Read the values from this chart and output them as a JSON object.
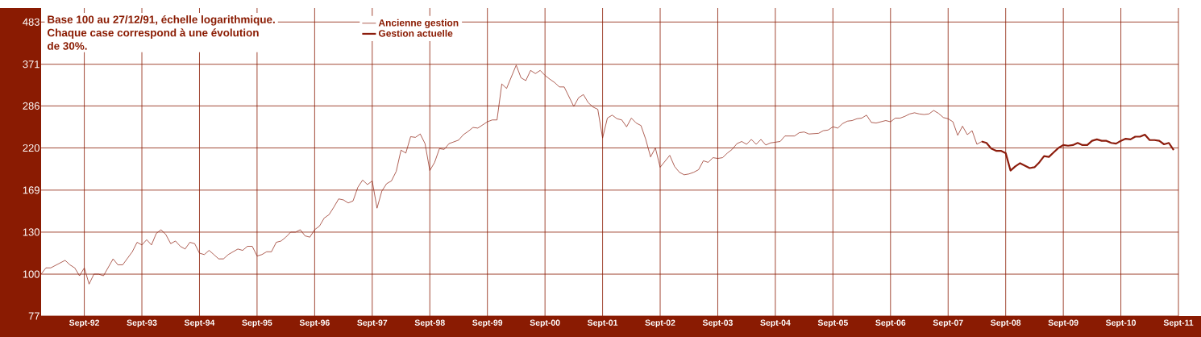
{
  "chart_data": {
    "type": "line",
    "annotations": [
      "Base 100 au 27/12/91, échelle logarithmique.",
      "Chaque case correspond à une évolution",
      "de 30%."
    ],
    "series": [
      {
        "name": "Ancienne gestion",
        "color": "#8c1c0c",
        "x": [
          "1991-12",
          "1992-01",
          "1992-02",
          "1992-05",
          "1992-06",
          "1992-07",
          "1992-08",
          "1992-09",
          "1992-10",
          "1992-11",
          "1992-12",
          "1993-01",
          "1993-03",
          "1993-04",
          "1993-05",
          "1993-07",
          "1993-08",
          "1993-09",
          "1993-10",
          "1993-11",
          "1993-12",
          "1994-01",
          "1994-02",
          "1994-03",
          "1994-04",
          "1994-05",
          "1994-06",
          "1994-07",
          "1994-08",
          "1994-09",
          "1994-10",
          "1994-11",
          "1994-12",
          "1995-01",
          "1995-02",
          "1995-03",
          "1995-04",
          "1995-05",
          "1995-06",
          "1995-07",
          "1995-08",
          "1995-09",
          "1995-10",
          "1995-11",
          "1995-12",
          "1996-01",
          "1996-02",
          "1996-03",
          "1996-04",
          "1996-05",
          "1996-06",
          "1996-07",
          "1996-08",
          "1996-09",
          "1996-10",
          "1996-11",
          "1996-12",
          "1997-01",
          "1997-02",
          "1997-03",
          "1997-04",
          "1997-05",
          "1997-06",
          "1997-07",
          "1997-08",
          "1997-09",
          "1997-10",
          "1997-11",
          "1997-12",
          "1998-01",
          "1998-02",
          "1998-03",
          "1998-04",
          "1998-05",
          "1998-06",
          "1998-07",
          "1998-08",
          "1998-09",
          "1998-10",
          "1998-11",
          "1998-12",
          "1999-01",
          "1999-03",
          "1999-04",
          "1999-05",
          "1999-06",
          "1999-07",
          "1999-09",
          "1999-10",
          "1999-11",
          "1999-12",
          "2000-01",
          "2000-03",
          "2000-04",
          "2000-05",
          "2000-06",
          "2000-07",
          "2000-08",
          "2000-09",
          "2000-10",
          "2000-11",
          "2000-12",
          "2001-01",
          "2001-03",
          "2001-04",
          "2001-05",
          "2001-06",
          "2001-07",
          "2001-08",
          "2001-09",
          "2001-10",
          "2001-11",
          "2001-12",
          "2002-01",
          "2002-02",
          "2002-03",
          "2002-04",
          "2002-05",
          "2002-06",
          "2002-07",
          "2002-08",
          "2002-09",
          "2002-11",
          "2002-12",
          "2003-01",
          "2003-02",
          "2003-03",
          "2003-04",
          "2003-05",
          "2003-06",
          "2003-07",
          "2003-08",
          "2003-09",
          "2003-10",
          "2003-11",
          "2003-12",
          "2004-01",
          "2004-02",
          "2004-03",
          "2004-04",
          "2004-05",
          "2004-06",
          "2004-07",
          "2004-08",
          "2004-10",
          "2004-11",
          "2005-01",
          "2005-02",
          "2005-03",
          "2005-04",
          "2005-06",
          "2005-07",
          "2005-08",
          "2005-09",
          "2005-10",
          "2005-11",
          "2005-12",
          "2006-01",
          "2006-02",
          "2006-03",
          "2006-04",
          "2006-05",
          "2006-06",
          "2006-07",
          "2006-08",
          "2006-09",
          "2006-10",
          "2006-11",
          "2006-12",
          "2007-01",
          "2007-02",
          "2007-03",
          "2007-04",
          "2007-05",
          "2007-06",
          "2007-07",
          "2007-08",
          "2007-09",
          "2007-10",
          "2007-11",
          "2007-12",
          "2008-01",
          "2008-02",
          "2008-03",
          "2008-04"
        ],
        "values": [
          100,
          104,
          104,
          109,
          106,
          104,
          99,
          104,
          94,
          100,
          100,
          99,
          110,
          106,
          106,
          115,
          122,
          120,
          124,
          120,
          129,
          132,
          128,
          121,
          123,
          119,
          117,
          122,
          121,
          114,
          113,
          116,
          113,
          110,
          110,
          113,
          115,
          117,
          116,
          119,
          119,
          112,
          113,
          115,
          115,
          122,
          123,
          126,
          130,
          130,
          132,
          127,
          126,
          132,
          135,
          142,
          145,
          152,
          160,
          159,
          156,
          158,
          172,
          180,
          175,
          179,
          151,
          168,
          176,
          179,
          190,
          217,
          213,
          236,
          235,
          240,
          226,
          191,
          201,
          219,
          218,
          226,
          231,
          239,
          244,
          250,
          249,
          259,
          262,
          262,
          328,
          319,
          369,
          341,
          335,
          357,
          350,
          357,
          346,
          338,
          331,
          322,
          322,
          285,
          301,
          307,
          292,
          284,
          280,
          234,
          265,
          270,
          264,
          262,
          251,
          265,
          257,
          253,
          232,
          208,
          220,
          195,
          210,
          196,
          189,
          186,
          187,
          189,
          192,
          203,
          201,
          207,
          206,
          207,
          213,
          218,
          226,
          229,
          225,
          232,
          225,
          232,
          224,
          227,
          229,
          237,
          237,
          242,
          243,
          240,
          241,
          245,
          246,
          251,
          249,
          256,
          260,
          261,
          264,
          265,
          270,
          258,
          257,
          259,
          261,
          259,
          265,
          265,
          268,
          272,
          274,
          272,
          271,
          272,
          278,
          273,
          266,
          264,
          259,
          238,
          252,
          239,
          245,
          225,
          229
        ]
      },
      {
        "name": "Gestion actuelle",
        "color": "#8c1c0c",
        "x": [
          "2008-04",
          "2008-05",
          "2008-06",
          "2008-07",
          "2008-08",
          "2008-09",
          "2008-10",
          "2008-11",
          "2008-12",
          "2009-01",
          "2009-02",
          "2009-03",
          "2009-04",
          "2009-05",
          "2009-06",
          "2009-07",
          "2009-08",
          "2009-09",
          "2009-10",
          "2009-11",
          "2009-12",
          "2010-01",
          "2010-02",
          "2010-03",
          "2010-04",
          "2010-05",
          "2010-06",
          "2010-07",
          "2010-08",
          "2010-09",
          "2010-10",
          "2010-11",
          "2010-12",
          "2011-01",
          "2011-02",
          "2011-03",
          "2011-04",
          "2011-05",
          "2011-06",
          "2011-07",
          "2011-08"
        ],
        "values": [
          229,
          227,
          219,
          216,
          216,
          213,
          191,
          196,
          200,
          197,
          194,
          195,
          201,
          209,
          208,
          214,
          220,
          224,
          223,
          224,
          227,
          224,
          224,
          230,
          232,
          230,
          230,
          227,
          226,
          230,
          233,
          232,
          236,
          236,
          239,
          231,
          231,
          230,
          225,
          227,
          217
        ]
      }
    ],
    "xlim": [
      "1991-12",
      "2011-09"
    ],
    "xticks": [
      {
        "value": "1992-09",
        "label": "Sept-92"
      },
      {
        "value": "1993-09",
        "label": "Sept-93"
      },
      {
        "value": "1994-09",
        "label": "Sept-94"
      },
      {
        "value": "1995-09",
        "label": "Sept-95"
      },
      {
        "value": "1996-09",
        "label": "Sept-96"
      },
      {
        "value": "1997-09",
        "label": "Sept-97"
      },
      {
        "value": "1998-09",
        "label": "Sept-98"
      },
      {
        "value": "1999-09",
        "label": "Sept-99"
      },
      {
        "value": "2000-09",
        "label": "Sept-00"
      },
      {
        "value": "2001-09",
        "label": "Sept-01"
      },
      {
        "value": "2002-09",
        "label": "Sept-02"
      },
      {
        "value": "2003-09",
        "label": "Sept-03"
      },
      {
        "value": "2004-09",
        "label": "Sept-04"
      },
      {
        "value": "2005-09",
        "label": "Sept-05"
      },
      {
        "value": "2006-09",
        "label": "Sept-06"
      },
      {
        "value": "2007-09",
        "label": "Sept-07"
      },
      {
        "value": "2008-09",
        "label": "Sept-08"
      },
      {
        "value": "2009-09",
        "label": "Sept-09"
      },
      {
        "value": "2010-09",
        "label": "Sept-10"
      },
      {
        "value": "2011-09",
        "label": "Sept-11"
      }
    ],
    "ylim": [
      77,
      527
    ],
    "yticks": [
      77,
      100,
      130,
      169,
      220,
      286,
      371,
      483
    ],
    "log": "y",
    "grid": true,
    "legend": "top"
  }
}
